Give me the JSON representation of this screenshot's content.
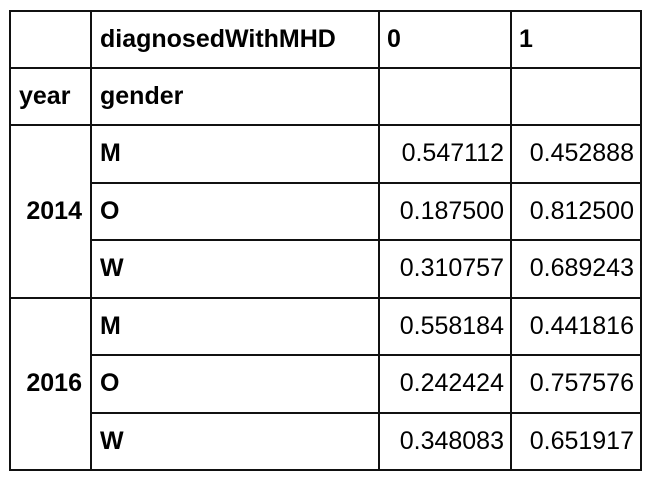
{
  "table": {
    "column_index_name": "diagnosedWithMHD",
    "columns": [
      "0",
      "1"
    ],
    "index_names": [
      "year",
      "gender"
    ],
    "groups": [
      {
        "year": "2014",
        "rows": [
          {
            "gender": "M",
            "values": [
              "0.547112",
              "0.452888"
            ]
          },
          {
            "gender": "O",
            "values": [
              "0.187500",
              "0.812500"
            ]
          },
          {
            "gender": "W",
            "values": [
              "0.310757",
              "0.689243"
            ]
          }
        ]
      },
      {
        "year": "2016",
        "rows": [
          {
            "gender": "M",
            "values": [
              "0.558184",
              "0.441816"
            ]
          },
          {
            "gender": "O",
            "values": [
              "0.242424",
              "0.757576"
            ]
          },
          {
            "gender": "W",
            "values": [
              "0.348083",
              "0.651917"
            ]
          }
        ]
      }
    ]
  }
}
